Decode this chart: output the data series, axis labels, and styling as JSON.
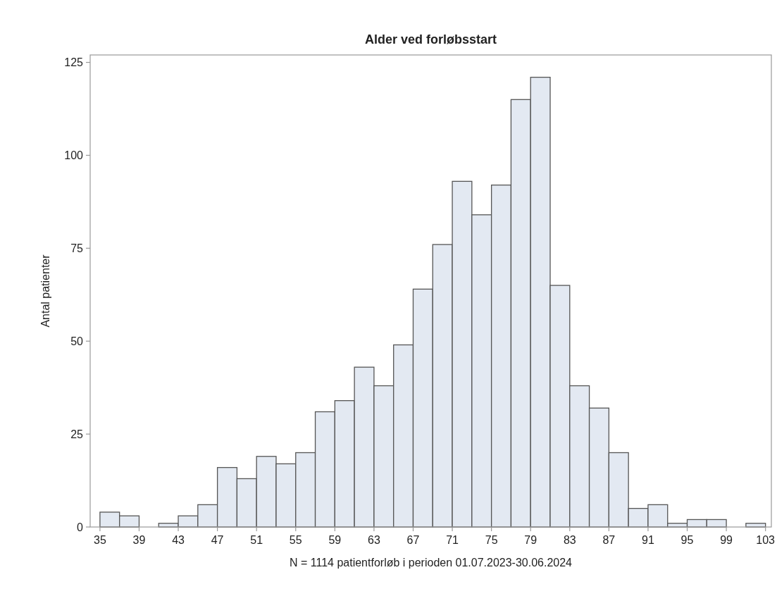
{
  "chart_data": {
    "type": "histogram",
    "title": "Alder ved forløbsstart",
    "xlabel": "N = 1114 patientforløb i perioden 01.07.2023-30.06.2024",
    "ylabel": "Antal patienter",
    "bins": [
      35,
      37,
      39,
      41,
      43,
      45,
      47,
      49,
      51,
      53,
      55,
      57,
      59,
      61,
      63,
      65,
      67,
      69,
      71,
      73,
      75,
      77,
      79,
      81,
      83,
      85,
      87,
      89,
      91,
      93,
      95,
      97,
      99,
      101,
      103
    ],
    "values": [
      4,
      3,
      0,
      1,
      3,
      6,
      16,
      13,
      19,
      17,
      20,
      31,
      34,
      43,
      38,
      49,
      64,
      76,
      93,
      84,
      92,
      115,
      121,
      65,
      38,
      32,
      20,
      5,
      6,
      1,
      2,
      2,
      0,
      1
    ],
    "color": "#e3e9f2",
    "xlim": [
      34,
      103.6
    ],
    "ylim": [
      0,
      127
    ],
    "xticks": [
      35,
      39,
      43,
      47,
      51,
      55,
      59,
      63,
      67,
      71,
      75,
      79,
      83,
      87,
      91,
      95,
      99,
      103
    ],
    "yticks": [
      0,
      25,
      50,
      75,
      100,
      125
    ],
    "grid": false
  }
}
